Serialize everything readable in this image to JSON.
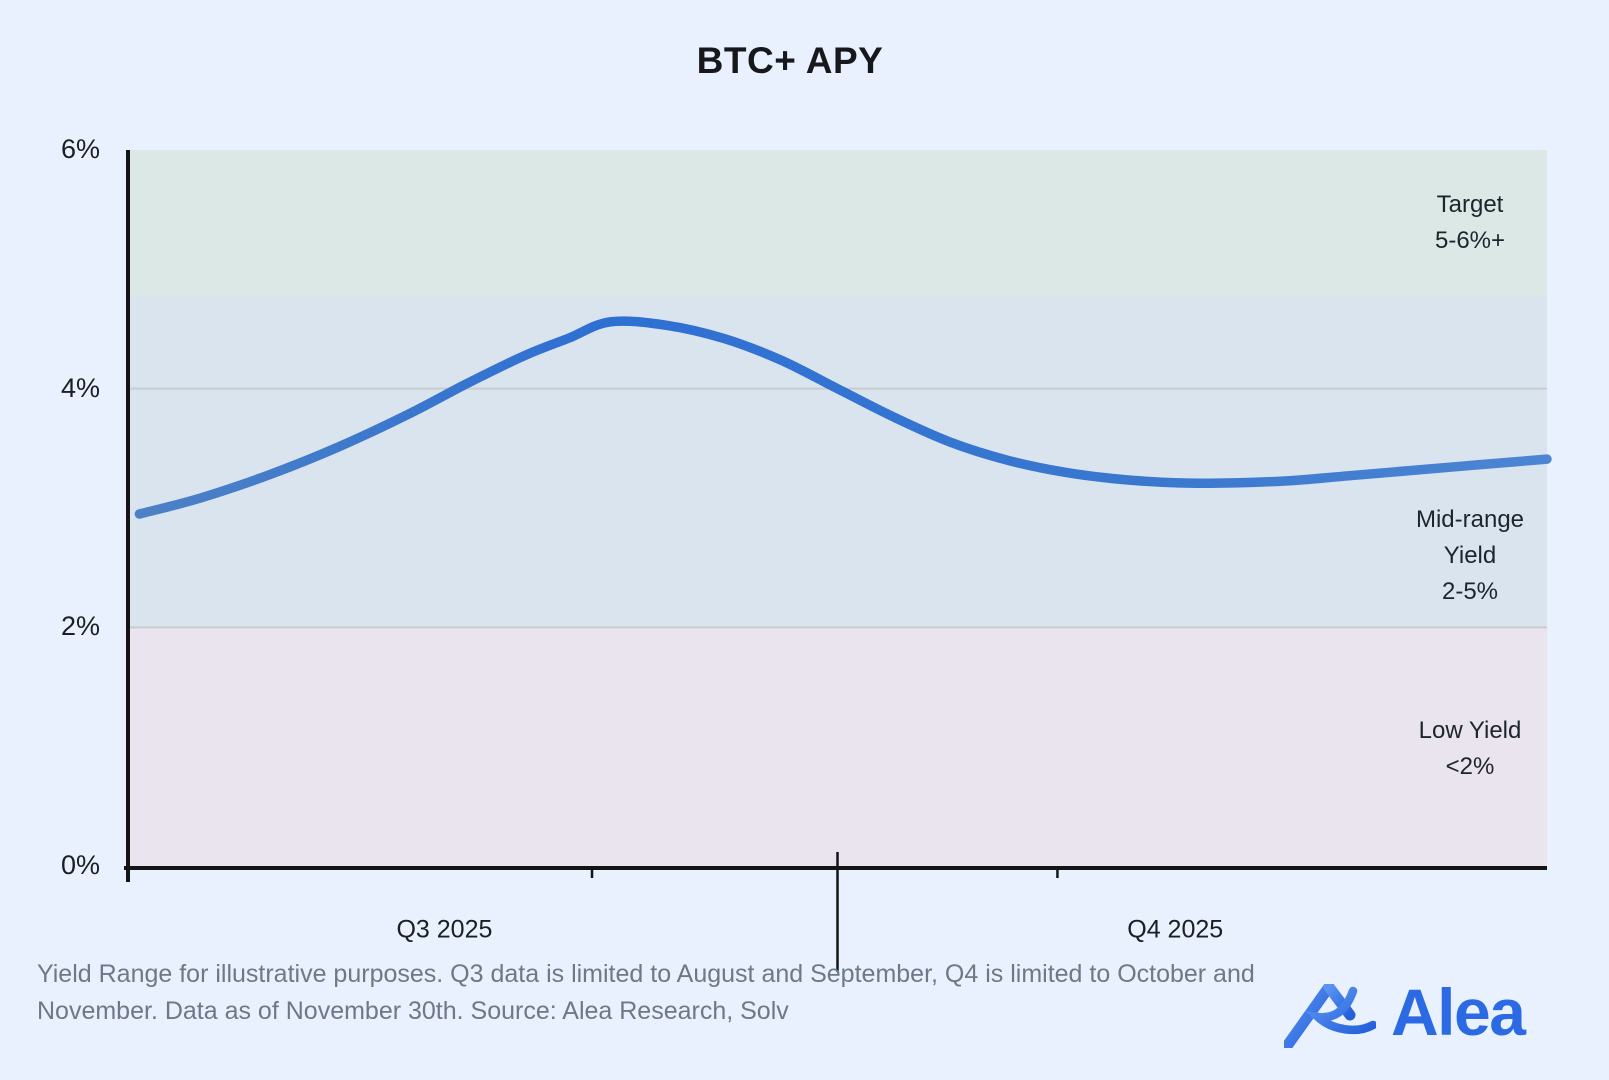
{
  "page": {
    "title": "BTC+ APY",
    "footnote": "Yield Range for illustrative purposes. Q3 data is limited to August and September, Q4 is limited to October and November. Data as of November 30th. Source: Alea Research, Solv"
  },
  "logo": {
    "text": "Alea",
    "mark": "alea-mountain-mark"
  },
  "colors": {
    "background": "#e8f1fd",
    "band_target": "#dbe8e6",
    "band_mid": "#d9e4ef",
    "band_low": "#e9e4ee",
    "gridline": "#c8cccf",
    "axis": "#141414",
    "line_blue": "#2f6fd3",
    "line_blue_edge": "#4c82c9",
    "text_dark": "#1b1e23",
    "text_muted": "#6e7888",
    "logo_blue": "#2b6ae3"
  },
  "chart_data": {
    "type": "line",
    "title": "BTC+ APY",
    "xlabel": "",
    "ylabel": "",
    "ylim": [
      0,
      6
    ],
    "grid": "horizontal",
    "gridline_values": [
      2,
      4
    ],
    "y_ticks": [
      {
        "value": 0,
        "label": "0%"
      },
      {
        "value": 2,
        "label": "2%"
      },
      {
        "value": 4,
        "label": "4%"
      },
      {
        "value": 6,
        "label": "6%"
      }
    ],
    "x_tick_labels": [
      {
        "label": "Q3 2025",
        "x_frac": 22.3
      },
      {
        "label": "Q4 2025",
        "x_frac": 73.8
      }
    ],
    "quarter_divider_x_frac": 50,
    "minor_tick_x_fracs": [
      32.7,
      65.5
    ],
    "bands": [
      {
        "name": "low-yield",
        "label_lines": [
          "Low Yield",
          "<2%"
        ],
        "from": 0,
        "to": 2,
        "label_center_apy": 0.98,
        "color": "#e9e4ee"
      },
      {
        "name": "mid-range",
        "label_lines": [
          "Mid-range",
          "Yield",
          "2-5%"
        ],
        "from": 2,
        "to": 4.78,
        "label_center_apy": 2.6,
        "color": "#d9e4ef"
      },
      {
        "name": "target",
        "label_lines": [
          "Target",
          "5-6%+"
        ],
        "from": 4.78,
        "to": 6,
        "label_center_apy": 5.39,
        "color": "#dbe8e6"
      }
    ],
    "series": [
      {
        "name": "BTC+ APY",
        "points": [
          [
            0.8,
            2.95
          ],
          [
            5,
            3.08
          ],
          [
            10,
            3.28
          ],
          [
            15,
            3.52
          ],
          [
            20,
            3.8
          ],
          [
            24,
            4.05
          ],
          [
            28,
            4.28
          ],
          [
            31,
            4.42
          ],
          [
            34,
            4.56
          ],
          [
            38,
            4.53
          ],
          [
            42,
            4.42
          ],
          [
            46,
            4.24
          ],
          [
            50,
            4.0
          ],
          [
            54,
            3.76
          ],
          [
            58,
            3.55
          ],
          [
            62,
            3.4
          ],
          [
            66,
            3.3
          ],
          [
            70,
            3.24
          ],
          [
            74,
            3.21
          ],
          [
            78,
            3.21
          ],
          [
            82,
            3.23
          ],
          [
            86,
            3.27
          ],
          [
            90,
            3.31
          ],
          [
            94,
            3.35
          ],
          [
            98,
            3.39
          ],
          [
            100,
            3.41
          ]
        ]
      }
    ]
  }
}
